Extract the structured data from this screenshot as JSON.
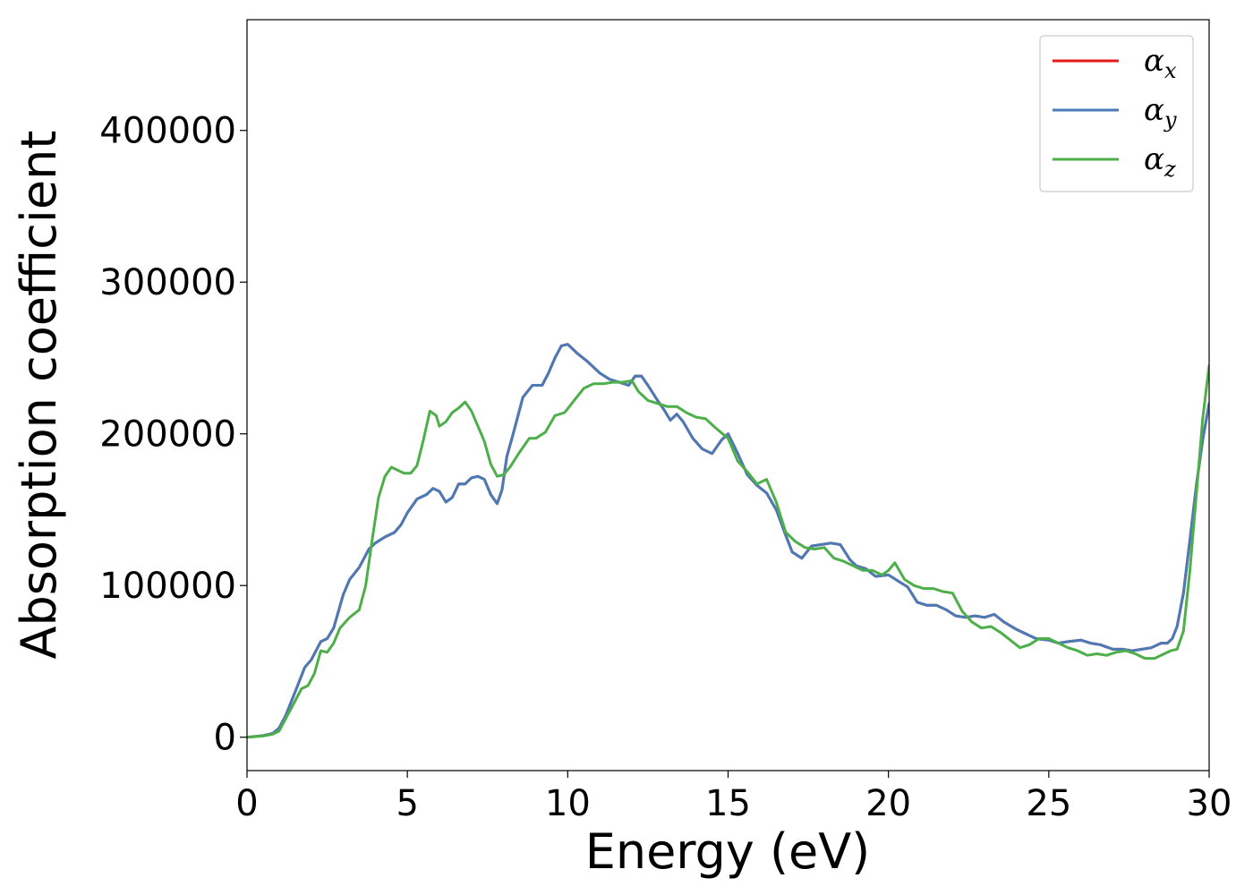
{
  "chart_data": {
    "type": "line",
    "xlabel": "Energy (eV)",
    "ylabel": "Absorption coefficient",
    "xlim": [
      0,
      30
    ],
    "ylim": [
      -22000,
      473000
    ],
    "xticks": [
      0,
      5,
      10,
      15,
      20,
      25,
      30
    ],
    "yticks": [
      0,
      100000,
      200000,
      300000,
      400000
    ],
    "grid": false,
    "legend_position": "top-right",
    "series": [
      {
        "name": "α_x",
        "symbol": "α",
        "subscript": "x",
        "color": "#e41a1c",
        "x": [
          0,
          0.5,
          0.8,
          1.0,
          1.2,
          1.5,
          1.8,
          2.0,
          2.3,
          2.5,
          2.7,
          3.0,
          3.2,
          3.5,
          3.8,
          4.0,
          4.3,
          4.6,
          4.8,
          5.0,
          5.3,
          5.6,
          5.8,
          6.0,
          6.2,
          6.4,
          6.6,
          6.8,
          7.0,
          7.2,
          7.4,
          7.6,
          7.8,
          7.95,
          8.1,
          8.3,
          8.6,
          8.9,
          9.2,
          9.4,
          9.6,
          9.8,
          10.0,
          10.3,
          10.6,
          11.0,
          11.3,
          11.6,
          11.9,
          12.1,
          12.3,
          12.5,
          12.8,
          13.0,
          13.2,
          13.4,
          13.6,
          13.9,
          14.2,
          14.5,
          14.8,
          15.0,
          15.3,
          15.6,
          15.9,
          16.2,
          16.5,
          16.8,
          17.0,
          17.3,
          17.6,
          17.9,
          18.2,
          18.5,
          18.8,
          19.0,
          19.3,
          19.6,
          20.0,
          20.3,
          20.6,
          20.9,
          21.2,
          21.5,
          21.8,
          22.1,
          22.4,
          22.7,
          23.0,
          23.3,
          23.6,
          24.0,
          24.3,
          24.6,
          25.0,
          25.3,
          25.6,
          26.0,
          26.3,
          26.6,
          27.0,
          27.3,
          27.6,
          27.9,
          28.2,
          28.5,
          28.7,
          28.85,
          29.0,
          29.2,
          29.4,
          29.6,
          29.8,
          30.0
        ],
        "y": [
          0,
          1000,
          2500,
          6000,
          14000,
          30000,
          46000,
          51000,
          63000,
          65000,
          72000,
          94000,
          104000,
          112000,
          124000,
          128000,
          132000,
          135000,
          140000,
          148000,
          157000,
          160000,
          164000,
          162000,
          155000,
          158000,
          167000,
          167000,
          171000,
          172000,
          170000,
          160000,
          154000,
          163000,
          185000,
          200000,
          224000,
          232000,
          232000,
          240000,
          250000,
          258000,
          259000,
          253000,
          248000,
          240000,
          236000,
          234000,
          232000,
          238000,
          238000,
          232000,
          222000,
          216000,
          209000,
          213000,
          208000,
          197000,
          190000,
          187000,
          196000,
          200000,
          187000,
          173000,
          166000,
          161000,
          150000,
          133000,
          122000,
          118000,
          126000,
          127000,
          128000,
          127000,
          117000,
          113000,
          111000,
          106000,
          107000,
          103000,
          99000,
          89000,
          87000,
          87000,
          84000,
          80000,
          79000,
          80000,
          79000,
          81000,
          76000,
          71000,
          68000,
          65000,
          64000,
          62000,
          63000,
          64000,
          62000,
          61000,
          58000,
          58000,
          57000,
          58000,
          59000,
          62000,
          62000,
          65000,
          73000,
          95000,
          130000,
          166000,
          196000,
          220000
        ]
      },
      {
        "name": "α_y",
        "symbol": "α",
        "subscript": "y",
        "color": "#4a7bb7",
        "x": [
          0,
          0.5,
          0.8,
          1.0,
          1.2,
          1.5,
          1.8,
          2.0,
          2.3,
          2.5,
          2.7,
          3.0,
          3.2,
          3.5,
          3.8,
          4.0,
          4.3,
          4.6,
          4.8,
          5.0,
          5.3,
          5.6,
          5.8,
          6.0,
          6.2,
          6.4,
          6.6,
          6.8,
          7.0,
          7.2,
          7.4,
          7.6,
          7.8,
          7.95,
          8.1,
          8.3,
          8.6,
          8.9,
          9.2,
          9.4,
          9.6,
          9.8,
          10.0,
          10.3,
          10.6,
          11.0,
          11.3,
          11.6,
          11.9,
          12.1,
          12.3,
          12.5,
          12.8,
          13.0,
          13.2,
          13.4,
          13.6,
          13.9,
          14.2,
          14.5,
          14.8,
          15.0,
          15.3,
          15.6,
          15.9,
          16.2,
          16.5,
          16.8,
          17.0,
          17.3,
          17.6,
          17.9,
          18.2,
          18.5,
          18.8,
          19.0,
          19.3,
          19.6,
          20.0,
          20.3,
          20.6,
          20.9,
          21.2,
          21.5,
          21.8,
          22.1,
          22.4,
          22.7,
          23.0,
          23.3,
          23.6,
          24.0,
          24.3,
          24.6,
          25.0,
          25.3,
          25.6,
          26.0,
          26.3,
          26.6,
          27.0,
          27.3,
          27.6,
          27.9,
          28.2,
          28.5,
          28.7,
          28.85,
          29.0,
          29.2,
          29.4,
          29.6,
          29.8,
          30.0
        ],
        "y": [
          0,
          1000,
          2500,
          6000,
          14000,
          30000,
          46000,
          51000,
          63000,
          65000,
          72000,
          94000,
          104000,
          112000,
          124000,
          128000,
          132000,
          135000,
          140000,
          148000,
          157000,
          160000,
          164000,
          162000,
          155000,
          158000,
          167000,
          167000,
          171000,
          172000,
          170000,
          160000,
          154000,
          163000,
          185000,
          200000,
          224000,
          232000,
          232000,
          240000,
          250000,
          258000,
          259000,
          253000,
          248000,
          240000,
          236000,
          234000,
          232000,
          238000,
          238000,
          232000,
          222000,
          216000,
          209000,
          213000,
          208000,
          197000,
          190000,
          187000,
          196000,
          200000,
          187000,
          173000,
          166000,
          161000,
          150000,
          133000,
          122000,
          118000,
          126000,
          127000,
          128000,
          127000,
          117000,
          113000,
          111000,
          106000,
          107000,
          103000,
          99000,
          89000,
          87000,
          87000,
          84000,
          80000,
          79000,
          80000,
          79000,
          81000,
          76000,
          71000,
          68000,
          65000,
          64000,
          62000,
          63000,
          64000,
          62000,
          61000,
          58000,
          58000,
          57000,
          58000,
          59000,
          62000,
          62000,
          65000,
          73000,
          95000,
          130000,
          166000,
          196000,
          220000
        ]
      },
      {
        "name": "α_z",
        "symbol": "α",
        "subscript": "z",
        "color": "#4daf4a",
        "x": [
          0,
          0.5,
          0.8,
          1.0,
          1.2,
          1.5,
          1.7,
          1.9,
          2.1,
          2.3,
          2.5,
          2.7,
          2.9,
          3.2,
          3.5,
          3.7,
          3.9,
          4.1,
          4.3,
          4.5,
          4.7,
          4.9,
          5.1,
          5.3,
          5.5,
          5.7,
          5.9,
          6.0,
          6.2,
          6.4,
          6.6,
          6.8,
          7.0,
          7.2,
          7.4,
          7.6,
          7.8,
          8.0,
          8.2,
          8.5,
          8.8,
          9.0,
          9.3,
          9.6,
          9.9,
          10.2,
          10.5,
          10.8,
          11.1,
          11.4,
          11.7,
          12.0,
          12.2,
          12.5,
          12.8,
          13.1,
          13.4,
          13.7,
          14.0,
          14.3,
          14.6,
          15.0,
          15.3,
          15.6,
          15.9,
          16.2,
          16.5,
          16.8,
          17.1,
          17.4,
          17.7,
          18.0,
          18.3,
          18.6,
          18.9,
          19.2,
          19.5,
          19.8,
          20.0,
          20.2,
          20.5,
          20.8,
          21.1,
          21.4,
          21.7,
          22.0,
          22.3,
          22.6,
          22.9,
          23.2,
          23.5,
          23.8,
          24.1,
          24.4,
          24.7,
          25.0,
          25.3,
          25.6,
          25.9,
          26.2,
          26.5,
          26.8,
          27.1,
          27.4,
          27.7,
          28.0,
          28.3,
          28.6,
          28.8,
          29.0,
          29.2,
          29.4,
          29.6,
          29.8,
          30.0
        ],
        "y": [
          0,
          800,
          2000,
          4000,
          12000,
          24000,
          32000,
          34000,
          42000,
          57000,
          56000,
          62000,
          72000,
          79000,
          84000,
          100000,
          130000,
          158000,
          172000,
          178000,
          176000,
          174000,
          174000,
          179000,
          196000,
          215000,
          212000,
          205000,
          208000,
          214000,
          217000,
          221000,
          215000,
          205000,
          195000,
          180000,
          172000,
          173000,
          178000,
          188000,
          197000,
          197000,
          201000,
          212000,
          214000,
          222000,
          230000,
          233000,
          233000,
          234000,
          234000,
          235000,
          228000,
          222000,
          220000,
          218000,
          218000,
          214000,
          211000,
          210000,
          204000,
          197000,
          182000,
          175000,
          167000,
          170000,
          155000,
          135000,
          129000,
          125000,
          124000,
          125000,
          118000,
          116000,
          113000,
          110000,
          110000,
          107000,
          110000,
          115000,
          104000,
          100000,
          98000,
          98000,
          96000,
          95000,
          83000,
          76000,
          72000,
          73000,
          69000,
          64000,
          59000,
          61000,
          65000,
          65000,
          62000,
          59000,
          57000,
          54000,
          55000,
          54000,
          56000,
          57000,
          55000,
          52000,
          52000,
          55000,
          57000,
          58000,
          70000,
          110000,
          160000,
          210000,
          245000
        ]
      }
    ]
  }
}
